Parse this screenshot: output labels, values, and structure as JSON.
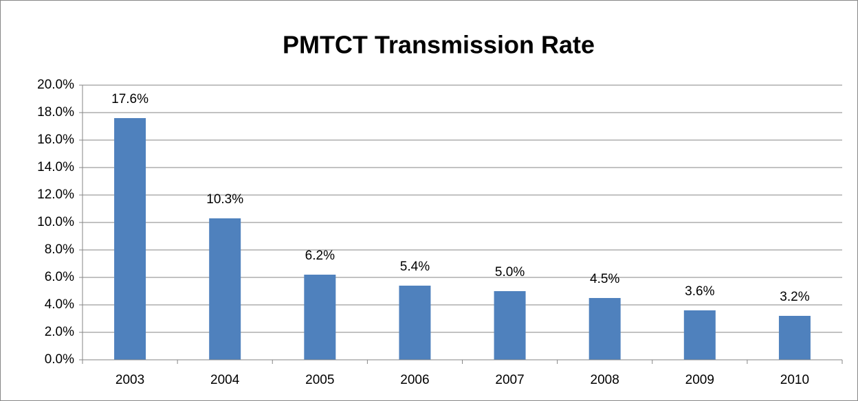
{
  "chart_data": {
    "type": "bar",
    "title": "PMTCT Transmission Rate",
    "categories": [
      "2003",
      "2004",
      "2005",
      "2006",
      "2007",
      "2008",
      "2009",
      "2010"
    ],
    "values": [
      17.6,
      10.3,
      6.2,
      5.4,
      5.0,
      4.5,
      3.6,
      3.2
    ],
    "value_labels": [
      "17.6%",
      "10.3%",
      "6.2%",
      "5.4%",
      "5.0%",
      "4.5%",
      "3.6%",
      "3.2%"
    ],
    "color": "#4f81bd",
    "ylim": [
      0,
      20
    ],
    "yticks": [
      {
        "value": 0,
        "label": "0.0%"
      },
      {
        "value": 2,
        "label": "2.0%"
      },
      {
        "value": 4,
        "label": "4.0%"
      },
      {
        "value": 6,
        "label": "6.0%"
      },
      {
        "value": 8,
        "label": "8.0%"
      },
      {
        "value": 10,
        "label": "10.0%"
      },
      {
        "value": 12,
        "label": "12.0%"
      },
      {
        "value": 14,
        "label": "14.0%"
      },
      {
        "value": 16,
        "label": "16.0%"
      },
      {
        "value": 18,
        "label": "18.0%"
      },
      {
        "value": 20,
        "label": "20.0%"
      }
    ],
    "grid": true
  }
}
